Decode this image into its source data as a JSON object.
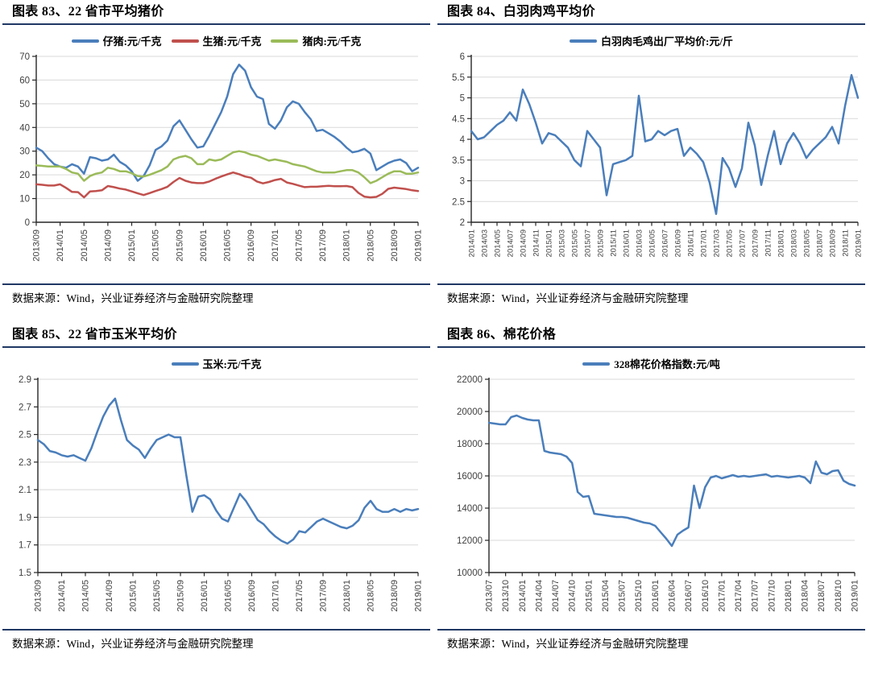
{
  "colors": {
    "rule_navy": "#1f3864",
    "series_blue": "#4a7ebb",
    "series_red": "#c0504d",
    "series_green": "#9bbb59",
    "gridline": "#d9d9d9"
  },
  "chart_data": [
    {
      "type": "line",
      "title": "图表 83、22 省市平均猪价",
      "source": "数据来源：Wind，兴业证券经济与金融研究院整理",
      "legend_position": "top",
      "grid": true,
      "ylim": [
        0,
        70
      ],
      "y_ticks": [
        0,
        10,
        20,
        30,
        40,
        50,
        60,
        70
      ],
      "x_tick_labels": [
        "2013/09",
        "2014/01",
        "2014/05",
        "2014/09",
        "2015/01",
        "2015/05",
        "2015/09",
        "2016/01",
        "2016/05",
        "2016/09",
        "2017/01",
        "2017/05",
        "2017/09",
        "2018/01",
        "2018/05",
        "2018/09",
        "2019/01"
      ],
      "series": [
        {
          "name": "仔猪:元/千克",
          "color": "#4a7ebb",
          "values": [
            31.5,
            30,
            27,
            24.5,
            23.5,
            23,
            24.5,
            23.5,
            20.5,
            27.5,
            27,
            26,
            26.5,
            28.5,
            25.5,
            24,
            21.5,
            17.5,
            19.5,
            24,
            30.5,
            32,
            34.5,
            40.5,
            43,
            39,
            35,
            31.5,
            32,
            36.5,
            41.5,
            46.5,
            53,
            62.5,
            66.5,
            64,
            57,
            53,
            52,
            41.5,
            39.5,
            43,
            48.5,
            51,
            50,
            46.5,
            43.5,
            38.5,
            39,
            37.5,
            36,
            34,
            31.5,
            29.5,
            30,
            31,
            29,
            22,
            23.5,
            25,
            26,
            26.5,
            25,
            21.5,
            23
          ]
        },
        {
          "name": "生猪:元/千克",
          "color": "#c0504d",
          "values": [
            16,
            15.8,
            15.5,
            15.5,
            16,
            14.5,
            12.8,
            12.7,
            10.5,
            13,
            13.2,
            13.5,
            15.3,
            14.8,
            14.2,
            13.8,
            13,
            12.2,
            11.5,
            12.3,
            13.2,
            14,
            15,
            17,
            18.7,
            17.5,
            16.8,
            16.5,
            16.5,
            17.2,
            18.3,
            19.3,
            20.2,
            21,
            20.3,
            19.3,
            18.8,
            17.2,
            16.4,
            17,
            17.8,
            18.3,
            16.8,
            16.2,
            15.5,
            14.8,
            15,
            15,
            15.2,
            15.4,
            15.2,
            15.2,
            15.3,
            14.8,
            12.4,
            10.8,
            10.5,
            10.7,
            12,
            14.1,
            14.6,
            14.3,
            14,
            13.5,
            13.2
          ]
        },
        {
          "name": "猪肉:元/千克",
          "color": "#9bbb59",
          "values": [
            24,
            23.8,
            23.5,
            23.5,
            23.5,
            22.5,
            21,
            20.5,
            17.5,
            19.5,
            20.5,
            21,
            23,
            22.5,
            21.5,
            21.5,
            20.7,
            19.5,
            19.3,
            20,
            21,
            22,
            23.5,
            26.5,
            27.5,
            28,
            27,
            24.5,
            24.5,
            26.5,
            26,
            26.5,
            28,
            29.5,
            30,
            29.5,
            28.5,
            28,
            27,
            26,
            26.5,
            26,
            25.5,
            24.5,
            24,
            23.5,
            22.5,
            21.5,
            21,
            21,
            21,
            21.5,
            22,
            22,
            21,
            19,
            16.5,
            17.5,
            19,
            20.5,
            21.5,
            21.5,
            20.5,
            20.5,
            21
          ]
        }
      ]
    },
    {
      "type": "line",
      "title": "图表 84、白羽肉鸡平均价",
      "source": "数据来源：Wind，兴业证券经济与金融研究院整理",
      "legend_position": "top",
      "grid": true,
      "ylim": [
        2,
        6
      ],
      "y_ticks": [
        2,
        2.5,
        3,
        3.5,
        4,
        4.5,
        5,
        5.5,
        6
      ],
      "x_tick_labels": [
        "2014/01",
        "2014/03",
        "2014/05",
        "2014/07",
        "2014/09",
        "2014/11",
        "2015/01",
        "2015/03",
        "2015/05",
        "2015/07",
        "2015/09",
        "2015/11",
        "2016/01",
        "2016/03",
        "2016/05",
        "2016/07",
        "2016/09",
        "2016/11",
        "2017/01",
        "2017/03",
        "2017/05",
        "2017/07",
        "2017/09",
        "2017/11",
        "2018/01",
        "2018/03",
        "2018/05",
        "2018/07",
        "2018/09",
        "2018/11",
        "2019/01"
      ],
      "series": [
        {
          "name": "白羽肉毛鸡出厂平均价:元/斤",
          "color": "#4a7ebb",
          "values": [
            4.2,
            4.0,
            4.05,
            4.2,
            4.35,
            4.45,
            4.65,
            4.45,
            5.2,
            4.85,
            4.4,
            3.9,
            4.15,
            4.1,
            3.95,
            3.8,
            3.5,
            3.35,
            4.2,
            4.0,
            3.8,
            2.65,
            3.4,
            3.45,
            3.5,
            3.6,
            5.05,
            3.95,
            4.0,
            4.2,
            4.1,
            4.2,
            4.25,
            3.6,
            3.8,
            3.65,
            3.45,
            2.95,
            2.2,
            3.55,
            3.3,
            2.85,
            3.3,
            4.4,
            3.85,
            2.9,
            3.6,
            4.2,
            3.4,
            3.9,
            4.15,
            3.9,
            3.55,
            3.75,
            3.9,
            4.05,
            4.3,
            3.9,
            4.8,
            5.55,
            5.0
          ]
        }
      ]
    },
    {
      "type": "line",
      "title": "图表 85、22 省市玉米平均价",
      "source": "数据来源：Wind，兴业证券经济与金融研究院整理",
      "legend_position": "top",
      "grid": true,
      "ylim": [
        1.5,
        2.9
      ],
      "y_ticks": [
        1.5,
        1.7,
        1.9,
        2.1,
        2.3,
        2.5,
        2.7,
        2.9
      ],
      "x_tick_labels": [
        "2013/09",
        "2014/01",
        "2014/05",
        "2014/09",
        "2015/01",
        "2015/05",
        "2015/09",
        "2016/01",
        "2016/05",
        "2016/09",
        "2017/01",
        "2017/05",
        "2017/09",
        "2018/01",
        "2018/05",
        "2018/09",
        "2019/01"
      ],
      "series": [
        {
          "name": "玉米:元/千克",
          "color": "#4a7ebb",
          "values": [
            2.46,
            2.43,
            2.38,
            2.37,
            2.35,
            2.34,
            2.35,
            2.33,
            2.31,
            2.4,
            2.52,
            2.63,
            2.71,
            2.76,
            2.6,
            2.46,
            2.42,
            2.39,
            2.33,
            2.4,
            2.46,
            2.48,
            2.5,
            2.48,
            2.48,
            2.2,
            1.94,
            2.05,
            2.06,
            2.03,
            1.95,
            1.89,
            1.87,
            1.97,
            2.07,
            2.02,
            1.95,
            1.88,
            1.85,
            1.8,
            1.76,
            1.73,
            1.71,
            1.74,
            1.8,
            1.79,
            1.83,
            1.87,
            1.89,
            1.87,
            1.85,
            1.83,
            1.82,
            1.84,
            1.88,
            1.97,
            2.02,
            1.96,
            1.94,
            1.94,
            1.96,
            1.94,
            1.96,
            1.95,
            1.96
          ]
        }
      ]
    },
    {
      "type": "line",
      "title": "图表 86、棉花价格",
      "source": "数据来源：Wind，兴业证券经济与金融研究院整理",
      "legend_position": "top",
      "grid": true,
      "ylim": [
        10000,
        22000
      ],
      "y_ticks": [
        10000,
        12000,
        14000,
        16000,
        18000,
        20000,
        22000
      ],
      "x_tick_labels": [
        "2013/07",
        "2013/10",
        "2014/01",
        "2014/04",
        "2014/07",
        "2014/10",
        "2015/01",
        "2015/04",
        "2015/07",
        "2015/10",
        "2016/01",
        "2016/04",
        "2016/07",
        "2016/10",
        "2017/01",
        "2017/04",
        "2017/07",
        "2017/10",
        "2018/01",
        "2018/04",
        "2018/07",
        "2018/10",
        "2019/01"
      ],
      "series": [
        {
          "name": "328棉花价格指数:元/吨",
          "color": "#4a7ebb",
          "values": [
            19300,
            19250,
            19200,
            19200,
            19650,
            19750,
            19600,
            19500,
            19450,
            19450,
            17550,
            17450,
            17400,
            17350,
            17200,
            16800,
            15000,
            14700,
            14750,
            13650,
            13600,
            13550,
            13500,
            13450,
            13450,
            13400,
            13300,
            13200,
            13100,
            13050,
            12900,
            12500,
            12100,
            11650,
            12350,
            12600,
            12800,
            15400,
            14000,
            15300,
            15900,
            16000,
            15850,
            15950,
            16050,
            15950,
            16000,
            15950,
            16000,
            16050,
            16100,
            15950,
            16000,
            15950,
            15900,
            15950,
            16000,
            15900,
            15550,
            16900,
            16200,
            16100,
            16300,
            16350,
            15700,
            15500,
            15400
          ]
        }
      ]
    }
  ]
}
